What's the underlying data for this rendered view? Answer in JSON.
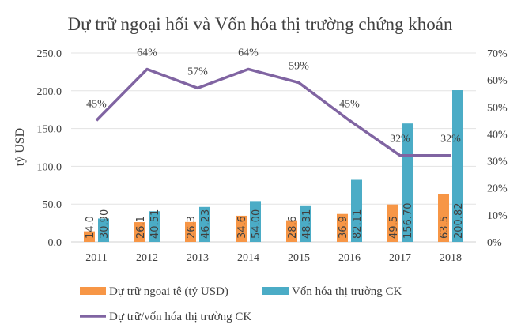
{
  "chart_data": {
    "type": "bar+line",
    "title": "Dự trữ ngoại hối và Vốn hóa thị trường chứng khoán",
    "ylabel": "tỷ USD",
    "ylabel_right": "",
    "categories": [
      "2011",
      "2012",
      "2013",
      "2014",
      "2015",
      "2016",
      "2017",
      "2018"
    ],
    "ylim": [
      0,
      250
    ],
    "yticks": [
      "0.0",
      "50.0",
      "100.0",
      "150.0",
      "200.0",
      "250.0"
    ],
    "ylim_right": [
      0,
      70
    ],
    "yticks_right": [
      "0%",
      "10%",
      "20%",
      "30%",
      "40%",
      "50%",
      "60%",
      "70%"
    ],
    "grid": true,
    "legend_position": "bottom",
    "series": [
      {
        "name": "Dự trữ ngoại tệ (tỷ USD)",
        "type": "bar",
        "axis": "left",
        "color": "#F79646",
        "values": [
          14.0,
          26.1,
          26.3,
          34.6,
          28.6,
          36.9,
          49.5,
          63.5
        ],
        "labels": [
          "14.0",
          "26.1",
          "26.3",
          "34.6",
          "28.6",
          "36.9",
          "49.5",
          "63.5"
        ]
      },
      {
        "name": "Vốn hóa thị trường CK",
        "type": "bar",
        "axis": "left",
        "color": "#4BACC6",
        "values": [
          30.9,
          40.51,
          46.23,
          54.0,
          48.31,
          82.11,
          156.7,
          200.82
        ],
        "labels": [
          "30.90",
          "40.51",
          "46.23",
          "54.00",
          "48.31",
          "82.11",
          "156.70",
          "200.82"
        ]
      },
      {
        "name": "Dự trữ/vốn hóa thị trường CK",
        "type": "line",
        "axis": "right",
        "color": "#8064A2",
        "values": [
          45,
          64,
          57,
          64,
          59,
          45,
          32,
          32
        ],
        "labels": [
          "45%",
          "64%",
          "57%",
          "64%",
          "59%",
          "45%",
          "32%",
          "32%"
        ]
      }
    ]
  }
}
